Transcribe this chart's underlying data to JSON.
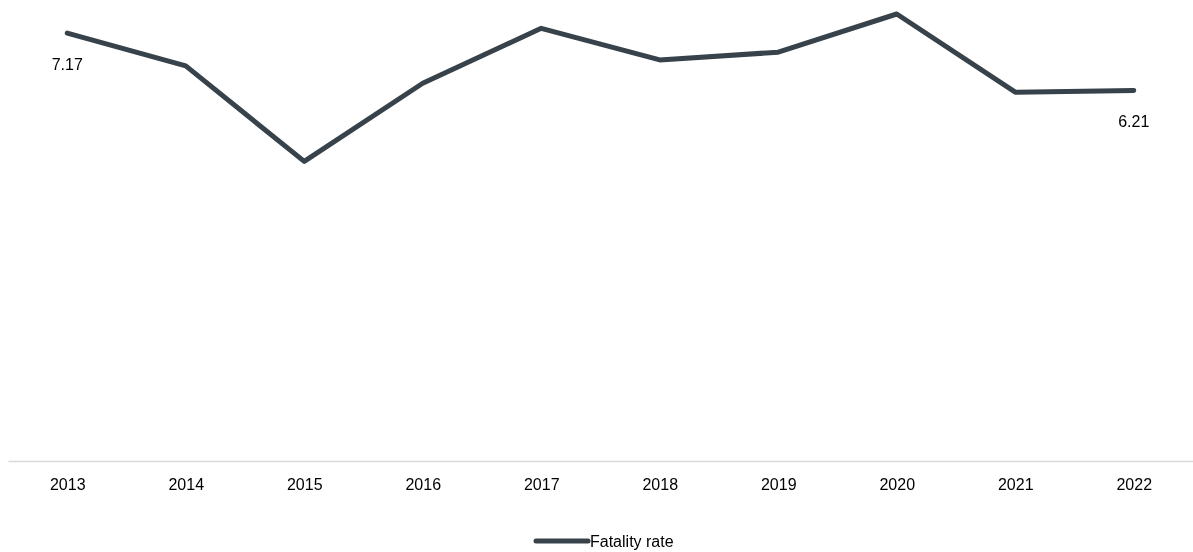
{
  "chart_data": {
    "type": "line",
    "categories": [
      "2013",
      "2014",
      "2015",
      "2016",
      "2017",
      "2018",
      "2019",
      "2020",
      "2021",
      "2022"
    ],
    "series": [
      {
        "name": "Fatality rate",
        "color": "#37424a",
        "values": [
          7.17,
          6.62,
          5.02,
          6.33,
          7.25,
          6.72,
          6.85,
          7.49,
          6.18,
          6.21
        ],
        "value_labels": [
          "7.17",
          null,
          null,
          null,
          null,
          null,
          null,
          null,
          null,
          "6.21"
        ]
      }
    ],
    "legend": "bottom",
    "marker": "none"
  }
}
